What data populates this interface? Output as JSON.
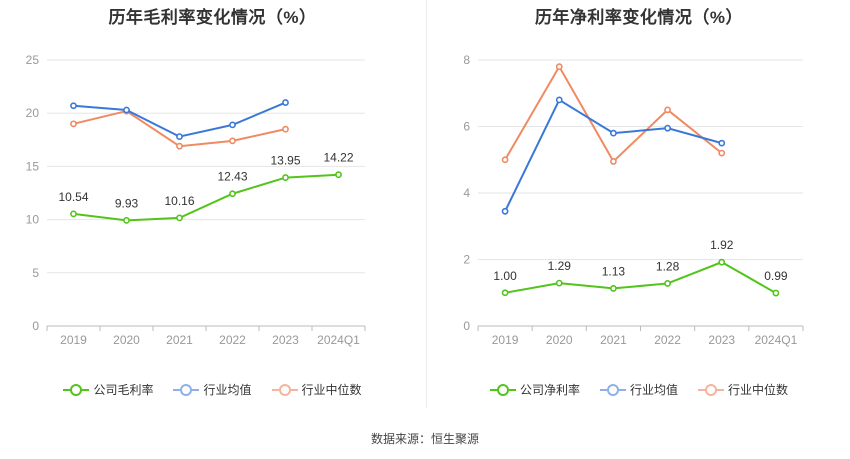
{
  "source_text": "数据来源：恒生聚源",
  "colors": {
    "company": "#52c41a",
    "industry_avg": "#3a78d8",
    "industry_median": "#f08a62",
    "grid": "#e6e6e6",
    "axis": "#999999"
  },
  "chart_data": [
    {
      "id": "gross",
      "type": "line",
      "title": "历年毛利率变化情况（%）",
      "categories": [
        "2019",
        "2020",
        "2021",
        "2022",
        "2023",
        "2024Q1"
      ],
      "ylim": [
        0,
        25
      ],
      "yticks": [
        0,
        5,
        10,
        15,
        20,
        25
      ],
      "grid": true,
      "legend_position": "bottom",
      "series": [
        {
          "name": "公司毛利率",
          "key": "company",
          "values": [
            10.54,
            9.93,
            10.16,
            12.43,
            13.95,
            14.22
          ],
          "labels": [
            "10.54",
            "9.93",
            "10.16",
            "12.43",
            "13.95",
            "14.22"
          ]
        },
        {
          "name": "行业均值",
          "key": "industry_avg",
          "values": [
            20.7,
            20.3,
            17.8,
            18.9,
            21.0,
            null
          ]
        },
        {
          "name": "行业中位数",
          "key": "industry_median",
          "values": [
            19.0,
            20.2,
            16.9,
            17.4,
            18.5,
            null
          ]
        }
      ]
    },
    {
      "id": "net",
      "type": "line",
      "title": "历年净利率变化情况（%）",
      "categories": [
        "2019",
        "2020",
        "2021",
        "2022",
        "2023",
        "2024Q1"
      ],
      "ylim": [
        0,
        8
      ],
      "yticks": [
        0,
        2,
        4,
        6,
        8
      ],
      "grid": true,
      "legend_position": "bottom",
      "series": [
        {
          "name": "公司净利率",
          "key": "company",
          "values": [
            1.0,
            1.29,
            1.13,
            1.28,
            1.92,
            0.99
          ],
          "labels": [
            "1.00",
            "1.29",
            "1.13",
            "1.28",
            "1.92",
            "0.99"
          ]
        },
        {
          "name": "行业均值",
          "key": "industry_avg",
          "values": [
            3.45,
            6.8,
            5.8,
            5.95,
            5.5,
            null
          ]
        },
        {
          "name": "行业中位数",
          "key": "industry_median",
          "values": [
            5.0,
            7.8,
            4.95,
            6.5,
            5.2,
            null
          ]
        }
      ]
    }
  ]
}
